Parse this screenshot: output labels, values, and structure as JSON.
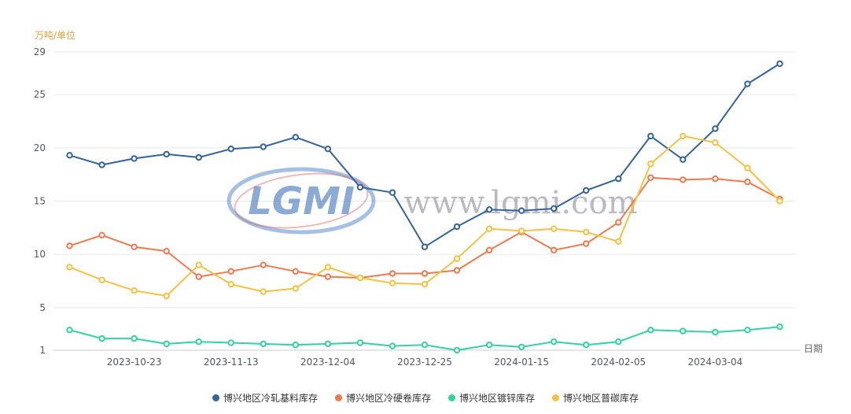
{
  "page": {
    "background": "#ffffff"
  },
  "watermark": {
    "logo_text": "LGMI",
    "url_text": "www.lgmi.com",
    "logo_color": "#2f66b6",
    "logo_ring_color": "#4a82cc",
    "logo_accent_color": "#d8544a",
    "url_color": "#8f8d9c"
  },
  "chart_data": {
    "type": "line",
    "title": "",
    "y_axis_title": "万吨/单位",
    "x_axis_title": "日期",
    "ylim": [
      1,
      29
    ],
    "y_ticks": [
      1,
      5,
      10,
      15,
      20,
      25,
      29
    ],
    "grid": true,
    "legend_position": "bottom",
    "x_tick_indices": [
      2,
      5,
      8,
      11,
      14,
      17,
      20
    ],
    "x_tick_labels": [
      "2023-10-23",
      "2023-11-13",
      "2023-12-04",
      "2023-12-25",
      "2024-01-15",
      "2024-02-05",
      "2024-03-04"
    ],
    "categories": [
      "2023-10-09",
      "2023-10-16",
      "2023-10-23",
      "2023-10-30",
      "2023-11-06",
      "2023-11-13",
      "2023-11-20",
      "2023-11-27",
      "2023-12-04",
      "2023-12-11",
      "2023-12-18",
      "2023-12-25",
      "2024-01-01",
      "2024-01-08",
      "2024-01-15",
      "2024-01-22",
      "2024-01-29",
      "2024-02-05",
      "2024-02-19",
      "2024-02-26",
      "2024-03-04",
      "2024-03-11",
      "2024-03-18"
    ],
    "series": [
      {
        "name": "博兴地区冷轧基料库存",
        "color": "#33649e",
        "values": [
          19.3,
          18.4,
          19.0,
          19.4,
          19.1,
          19.9,
          20.1,
          21.0,
          19.9,
          16.3,
          15.8,
          10.7,
          12.6,
          14.2,
          14.1,
          14.3,
          16.0,
          17.1,
          21.1,
          18.9,
          21.8,
          26.0,
          27.9
        ]
      },
      {
        "name": "博兴地区冷硬卷库存",
        "color": "#f3794d",
        "values": [
          10.8,
          11.8,
          10.7,
          10.3,
          7.9,
          8.4,
          9.0,
          8.4,
          7.9,
          7.8,
          8.2,
          8.2,
          8.5,
          10.4,
          12.1,
          10.4,
          11.0,
          13.0,
          17.2,
          17.0,
          17.1,
          16.8,
          15.2
        ]
      },
      {
        "name": "博兴地区镀锌库存",
        "color": "#32d3a2",
        "values": [
          2.9,
          2.1,
          2.1,
          1.6,
          1.8,
          1.7,
          1.6,
          1.5,
          1.6,
          1.7,
          1.4,
          1.5,
          1.0,
          1.5,
          1.3,
          1.8,
          1.5,
          1.8,
          2.9,
          2.8,
          2.7,
          2.9,
          3.2
        ]
      },
      {
        "name": "博兴地区普碳库存",
        "color": "#f7c142",
        "values": [
          8.8,
          7.6,
          6.6,
          6.1,
          9.0,
          7.2,
          6.5,
          6.8,
          8.8,
          7.8,
          7.3,
          7.2,
          9.6,
          12.4,
          12.2,
          12.4,
          12.1,
          11.2,
          18.5,
          21.1,
          20.5,
          18.1,
          15.0
        ]
      }
    ]
  }
}
